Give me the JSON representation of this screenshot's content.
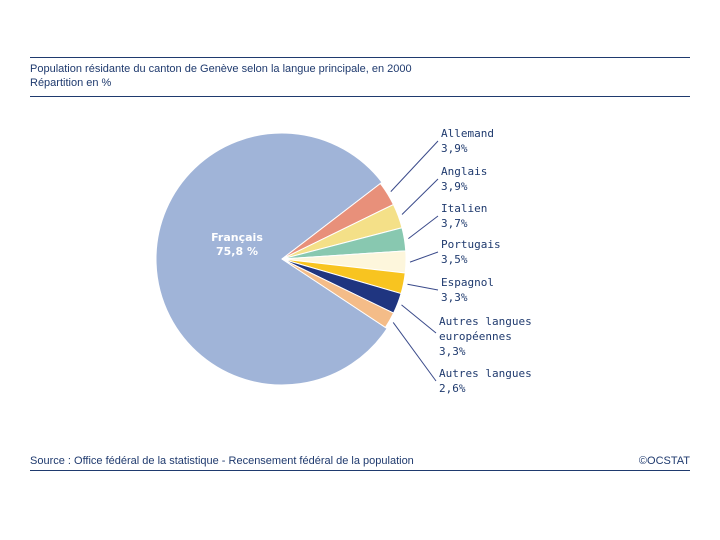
{
  "header": {
    "title_line1": "Population résidante du canton de Genève selon la langue principale, en 2000",
    "title_line2": "Répartition en %"
  },
  "footer": {
    "source": "Source : Office fédéral de la statistique - Recensement fédéral de la population",
    "credit": "©OCSTAT"
  },
  "chart_data": {
    "type": "pie",
    "title": "Population résidante du canton de Genève selon la langue principale, en 2000",
    "subtitle": "Répartition en %",
    "slices": [
      {
        "name": "Français",
        "value": 75.8,
        "label": "75,8 %",
        "color": "#a0b4d8"
      },
      {
        "name": "Allemand",
        "value": 3.9,
        "label": "3,9%",
        "color": "#e8907a"
      },
      {
        "name": "Anglais",
        "value": 3.9,
        "label": "3,9%",
        "color": "#f4e088"
      },
      {
        "name": "Italien",
        "value": 3.7,
        "label": "3,7%",
        "color": "#88c8b0"
      },
      {
        "name": "Portugais",
        "value": 3.5,
        "label": "3,5%",
        "color": "#fdf6dc"
      },
      {
        "name": "Espagnol",
        "value": 3.3,
        "label": "3,3%",
        "color": "#f8c420"
      },
      {
        "name": "Autres langues européennes",
        "value": 3.3,
        "label": "3,3%",
        "color": "#1f3580"
      },
      {
        "name": "Autres langues",
        "value": 2.6,
        "label": "2,6%",
        "color": "#f4bc88"
      }
    ],
    "legend_lines": [
      [
        "Allemand"
      ],
      [
        "Anglais"
      ],
      [
        "Italien"
      ],
      [
        "Portugais"
      ],
      [
        "Espagnol"
      ],
      [
        "Autres langues",
        "européennes"
      ],
      [
        "Autres langues"
      ]
    ]
  }
}
